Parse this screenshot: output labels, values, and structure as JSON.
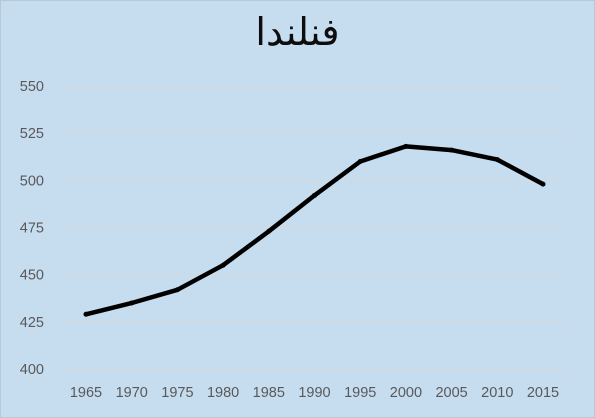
{
  "chart_data": {
    "type": "line",
    "title": "فنلندا",
    "xlabel": "",
    "ylabel": "",
    "x": [
      1965,
      1970,
      1975,
      1980,
      1985,
      1990,
      1995,
      2000,
      2005,
      2010,
      2015
    ],
    "x_tick_labels": [
      "1965",
      "1970",
      "1975",
      "1980",
      "1985",
      "1990",
      "1995",
      "2000",
      "2005",
      "2010",
      "2015"
    ],
    "y_ticks": [
      400,
      425,
      450,
      475,
      500,
      525,
      550
    ],
    "ylim": [
      400,
      550
    ],
    "grid": true,
    "legend": "none",
    "series": [
      {
        "values": [
          429,
          435,
          442,
          455,
          473,
          492,
          510,
          518,
          516,
          511,
          498
        ]
      }
    ],
    "colors": {
      "background": "#c6dcef",
      "line": "#000000",
      "grid": "#d9d9d9",
      "tick_text": "#595959",
      "title_text": "#0d0d0d"
    }
  }
}
